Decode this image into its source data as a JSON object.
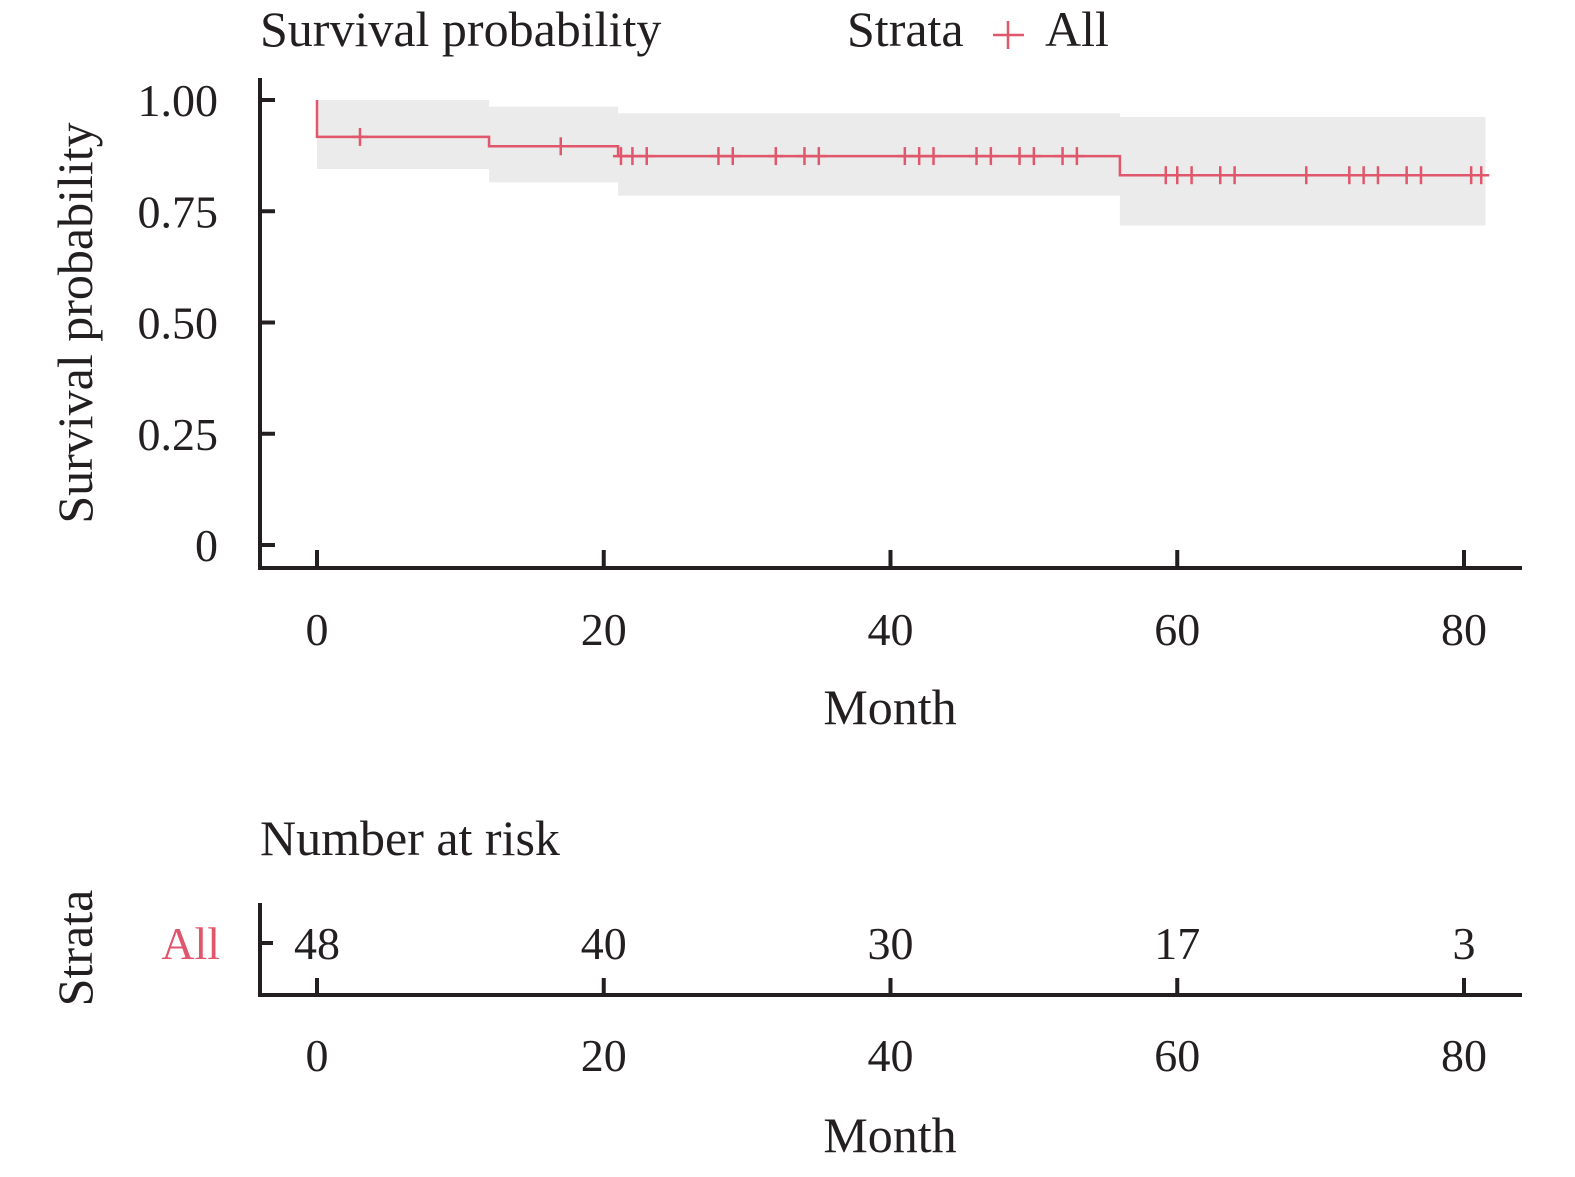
{
  "chart_data": [
    {
      "type": "line",
      "subtype": "kaplan-meier",
      "title": "Survival probability",
      "legend": {
        "title": "Strata",
        "entries": [
          {
            "label": "All",
            "color": "#e0566b"
          }
        ],
        "position": "top"
      },
      "xlabel": "Month",
      "ylabel": "Survival probability",
      "xlim": [
        0,
        84
      ],
      "ylim": [
        0,
        1
      ],
      "x_ticks": [
        0,
        20,
        40,
        60,
        80
      ],
      "x_tick_labels": [
        "0",
        "20",
        "40",
        "60",
        "80"
      ],
      "y_ticks": [
        0,
        0.25,
        0.5,
        0.75,
        1.0
      ],
      "y_tick_labels": [
        "0",
        "0.25",
        "0.50",
        "0.75",
        "1.00"
      ],
      "grid": false,
      "series": [
        {
          "name": "All",
          "color": "#e0566b",
          "steps": [
            {
              "x": 0,
              "y": 1.0
            },
            {
              "x": 0,
              "y": 0.917
            },
            {
              "x": 12,
              "y": 0.896
            },
            {
              "x": 21,
              "y": 0.874
            },
            {
              "x": 56,
              "y": 0.831
            },
            {
              "x": 81.5,
              "y": 0.831
            }
          ],
          "ci_band": [
            {
              "x0": 0,
              "x1": 12,
              "lower": 0.845,
              "upper": 1.0
            },
            {
              "x0": 12,
              "x1": 21,
              "lower": 0.815,
              "upper": 0.985
            },
            {
              "x0": 21,
              "x1": 56,
              "lower": 0.785,
              "upper": 0.97
            },
            {
              "x0": 56,
              "x1": 81.5,
              "lower": 0.718,
              "upper": 0.962
            }
          ],
          "censor_times": [
            3,
            17,
            21.2,
            22,
            23,
            28,
            29,
            32,
            34,
            35,
            41,
            42,
            43,
            46,
            47,
            49,
            50,
            52,
            53,
            59.2,
            60,
            61,
            63,
            64,
            69,
            72,
            73,
            74,
            76,
            77,
            80.5,
            81.2
          ]
        }
      ],
      "ci_color": "#ebebeb"
    },
    {
      "type": "table",
      "title": "Number at risk",
      "ylabel": "Strata",
      "xlabel": "Month",
      "x_ticks": [
        0,
        20,
        40,
        60,
        80
      ],
      "x_tick_labels": [
        "0",
        "20",
        "40",
        "60",
        "80"
      ],
      "rows": [
        {
          "label": "All",
          "color": "#e0566b",
          "values": [
            "48",
            "40",
            "30",
            "17",
            "3"
          ]
        }
      ]
    }
  ]
}
